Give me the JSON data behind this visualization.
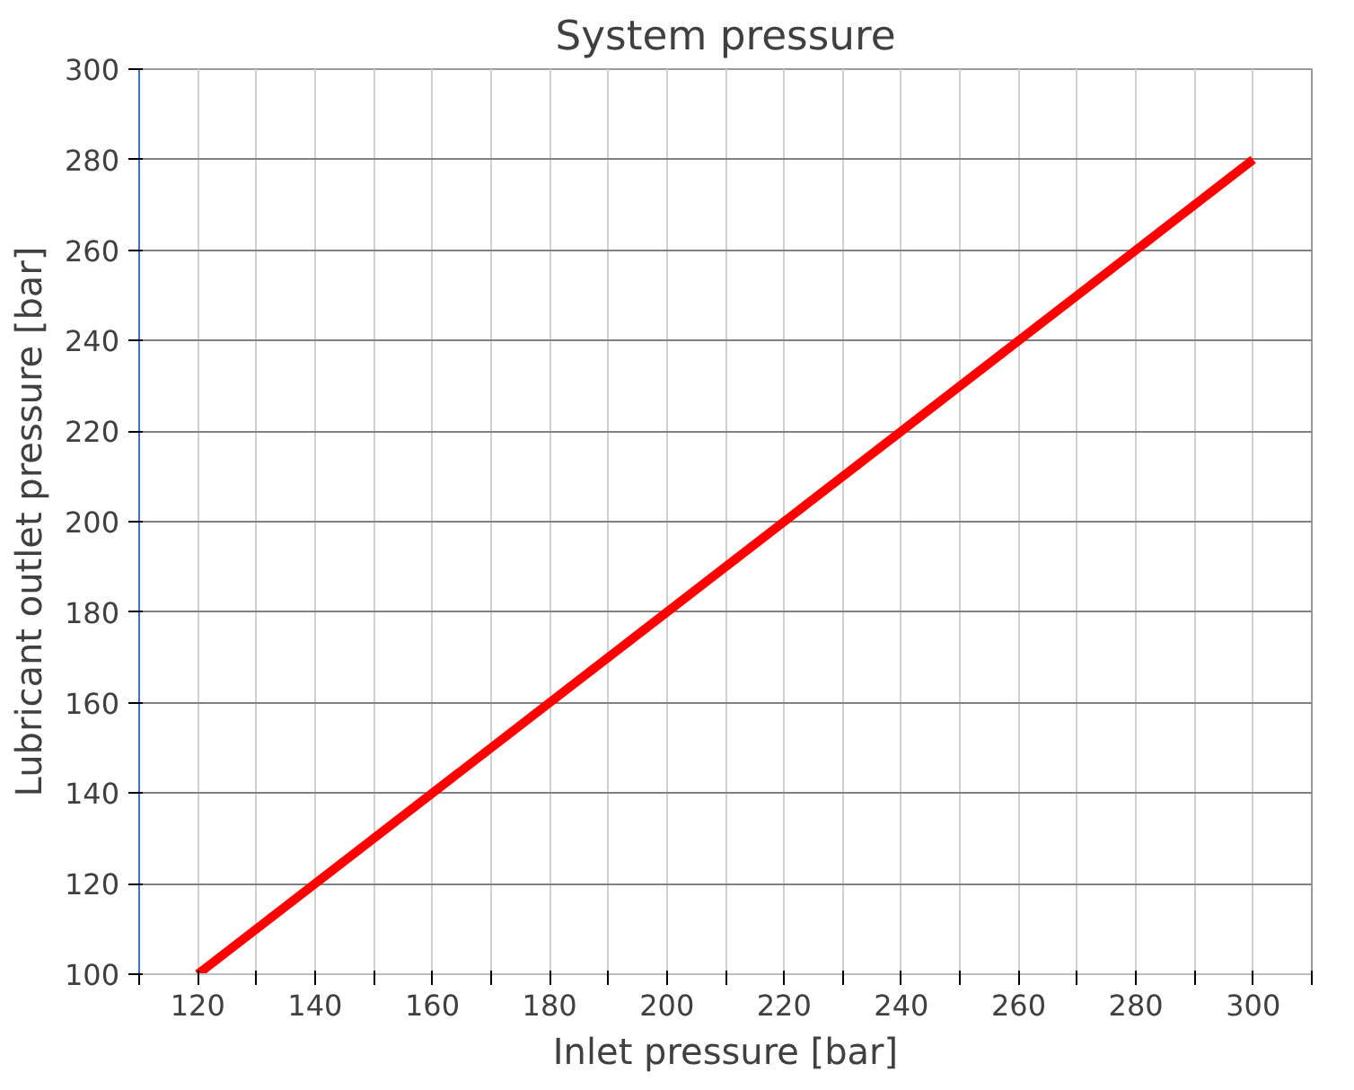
{
  "chart_data": {
    "type": "line",
    "title": "System pressure",
    "xlabel": "Inlet pressure [bar]",
    "ylabel": "Lubricant outlet pressure [bar]",
    "x": [
      120,
      300
    ],
    "series": [
      {
        "color": "#ff0000",
        "values": [
          100,
          280
        ]
      }
    ],
    "xlim": [
      110,
      310
    ],
    "xticks": [
      {
        "value": 110,
        "label": null
      },
      120,
      {
        "value": 130,
        "label": null
      },
      140,
      {
        "value": 150,
        "label": null
      },
      160,
      {
        "value": 170,
        "label": null
      },
      180,
      {
        "value": 190,
        "label": null
      },
      200,
      {
        "value": 210,
        "label": null
      },
      220,
      {
        "value": 230,
        "label": null
      },
      240,
      {
        "value": 250,
        "label": null
      },
      260,
      {
        "value": 270,
        "label": null
      },
      280,
      {
        "value": 290,
        "label": null
      },
      300,
      {
        "value": 310,
        "label": null
      }
    ],
    "ylim": [
      100,
      300
    ],
    "yticks": [
      100,
      120,
      140,
      160,
      180,
      200,
      220,
      240,
      260,
      280,
      300
    ],
    "grid": true,
    "line_style": "solid"
  }
}
